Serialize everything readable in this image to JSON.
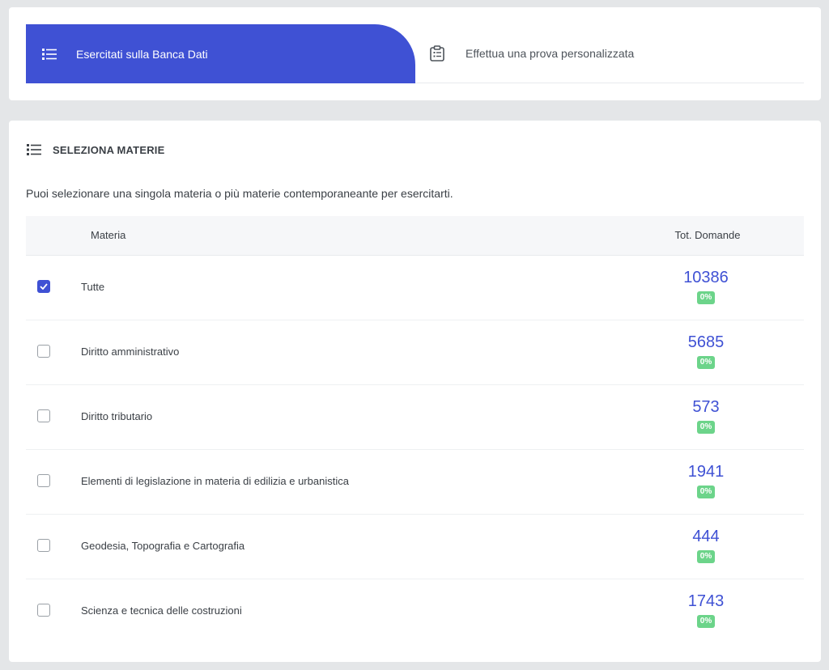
{
  "tabs": [
    {
      "label": "Esercitati sulla Banca Dati",
      "icon": "list-icon",
      "active": true
    },
    {
      "label": "Effettua una prova personalizzata",
      "icon": "clipboard-icon",
      "active": false
    }
  ],
  "section": {
    "title": "SELEZIONA MATERIE",
    "icon": "list-icon",
    "description": "Puoi selezionare una singola materia o più materie contemporaneante per esercitarti."
  },
  "table": {
    "headers": {
      "materia": "Materia",
      "tot": "Tot. Domande"
    },
    "rows": [
      {
        "name": "Tutte",
        "count": "10386",
        "percent": "0%",
        "checked": true
      },
      {
        "name": "Diritto amministrativo",
        "count": "5685",
        "percent": "0%",
        "checked": false
      },
      {
        "name": "Diritto tributario",
        "count": "573",
        "percent": "0%",
        "checked": false
      },
      {
        "name": "Elementi di legislazione in materia di edilizia e urbanistica",
        "count": "1941",
        "percent": "0%",
        "checked": false
      },
      {
        "name": "Geodesia, Topografia e Cartografia",
        "count": "444",
        "percent": "0%",
        "checked": false
      },
      {
        "name": "Scienza e tecnica delle costruzioni",
        "count": "1743",
        "percent": "0%",
        "checked": false
      }
    ]
  },
  "colors": {
    "accent": "#3f51d4",
    "badge": "#6cd48a",
    "background": "#e4e6e8"
  }
}
